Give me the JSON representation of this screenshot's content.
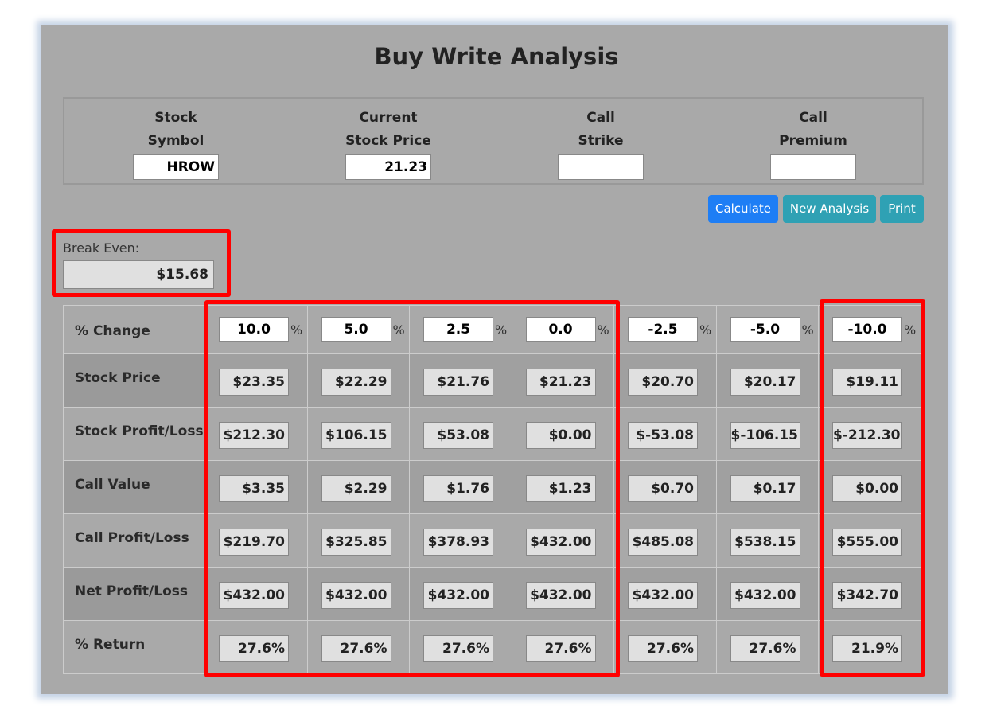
{
  "title": "Buy Write Analysis",
  "inputs": [
    {
      "label1": "Stock",
      "label2": "Symbol",
      "value": "HROW"
    },
    {
      "label1": "Current",
      "label2": "Stock Price",
      "value": "21.23"
    },
    {
      "label1": "Call",
      "label2": "Strike",
      "value": ""
    },
    {
      "label1": "Call",
      "label2": "Premium",
      "value": ""
    }
  ],
  "buttons": {
    "calculate": "Calculate",
    "new_analysis": "New Analysis",
    "print": "Print"
  },
  "colors": {
    "calculate": "#1e7ef5",
    "secondary": "#2fa1b4",
    "highlight": "#ff0000"
  },
  "break_even": {
    "label": "Break Even:",
    "value": "$15.68"
  },
  "table": {
    "pct_label": "% Change",
    "pct_sign": "%",
    "pct_changes": [
      "10.0",
      "5.0",
      "2.5",
      "0.0",
      "-2.5",
      "-5.0",
      "-10.0"
    ],
    "rows": [
      {
        "label": "Stock Price",
        "values": [
          "$23.35",
          "$22.29",
          "$21.76",
          "$21.23",
          "$20.70",
          "$20.17",
          "$19.11"
        ]
      },
      {
        "label": "Stock Profit/Loss",
        "values": [
          "$212.30",
          "$106.15",
          "$53.08",
          "$0.00",
          "$-53.08",
          "$-106.15",
          "$-212.30"
        ]
      },
      {
        "label": "Call Value",
        "values": [
          "$3.35",
          "$2.29",
          "$1.76",
          "$1.23",
          "$0.70",
          "$0.17",
          "$0.00"
        ]
      },
      {
        "label": "Call Profit/Loss",
        "values": [
          "$219.70",
          "$325.85",
          "$378.93",
          "$432.00",
          "$485.08",
          "$538.15",
          "$555.00"
        ]
      },
      {
        "label": "Net Profit/Loss",
        "values": [
          "$432.00",
          "$432.00",
          "$432.00",
          "$432.00",
          "$432.00",
          "$432.00",
          "$342.70"
        ]
      },
      {
        "label": "% Return",
        "values": [
          "27.6%",
          "27.6%",
          "27.6%",
          "27.6%",
          "27.6%",
          "27.6%",
          "21.9%"
        ]
      }
    ]
  }
}
